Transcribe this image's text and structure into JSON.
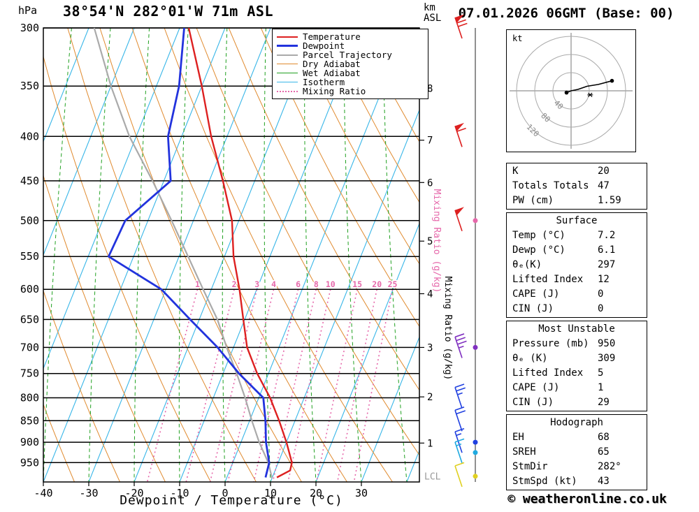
{
  "header": {
    "pressure_unit": "hPa",
    "station_title": "38°54'N 282°01'W 71m ASL",
    "altitude_unit_top": "km",
    "altitude_unit_bottom": "ASL",
    "date_title": "07.01.2026 06GMT (Base: 00)"
  },
  "legend": {
    "items": [
      {
        "label": "Temperature",
        "color": "#dd2020",
        "style": "solid",
        "weight": 2
      },
      {
        "label": "Dewpoint",
        "color": "#2233dd",
        "style": "solid",
        "weight": 3
      },
      {
        "label": "Parcel Trajectory",
        "color": "#aaaaaa",
        "style": "solid",
        "weight": 2
      },
      {
        "label": "Dry Adiabat",
        "color": "#e08a2e",
        "style": "solid",
        "weight": 1
      },
      {
        "label": "Wet Adiabat",
        "color": "#20a020",
        "style": "solid",
        "weight": 1
      },
      {
        "label": "Isotherm",
        "color": "#38b6e8",
        "style": "solid",
        "weight": 1
      },
      {
        "label": "Mixing Ratio",
        "color": "#e668aa",
        "style": "dotted",
        "weight": 2
      }
    ]
  },
  "chart_data": {
    "type": "skewt-log-p",
    "xlabel": "Dewpoint / Temperature (°C)",
    "pressure_ticks": [
      300,
      350,
      400,
      450,
      500,
      550,
      600,
      650,
      700,
      750,
      800,
      850,
      900,
      950
    ],
    "temp_ticks": [
      -40,
      -30,
      -20,
      -10,
      0,
      10,
      20,
      30
    ],
    "pressure_range": [
      300,
      1000
    ],
    "temp_axis_range": [
      -40,
      40
    ],
    "km_levels": [
      [
        8,
        352
      ],
      [
        7,
        404
      ],
      [
        6,
        452
      ],
      [
        5,
        528
      ],
      [
        4,
        607
      ],
      [
        3,
        700
      ],
      [
        2,
        798
      ],
      [
        1,
        902
      ]
    ],
    "lcl": {
      "label": "LCL",
      "pressure": 984
    },
    "mixing_ratio_values": [
      1,
      2,
      3,
      4,
      6,
      8,
      10,
      15,
      20,
      25
    ],
    "mixing_ratio_axis_label": "Mixing Ratio (g/kg)",
    "temperature_profile": [
      [
        988,
        11.0
      ],
      [
        970,
        13.3
      ],
      [
        950,
        13.0
      ],
      [
        900,
        10.0
      ],
      [
        850,
        6.5
      ],
      [
        800,
        2.5
      ],
      [
        750,
        -2.5
      ],
      [
        700,
        -7.0
      ],
      [
        650,
        -10.3
      ],
      [
        600,
        -13.8
      ],
      [
        550,
        -18.0
      ],
      [
        500,
        -21.5
      ],
      [
        450,
        -27.0
      ],
      [
        400,
        -33.5
      ],
      [
        350,
        -40.0
      ],
      [
        300,
        -48.0
      ]
    ],
    "dewpoint_profile": [
      [
        988,
        8.5
      ],
      [
        950,
        8.0
      ],
      [
        900,
        5.5
      ],
      [
        850,
        3.5
      ],
      [
        800,
        1.0
      ],
      [
        750,
        -6.5
      ],
      [
        700,
        -13.5
      ],
      [
        650,
        -22.0
      ],
      [
        600,
        -31.0
      ],
      [
        550,
        -45.5
      ],
      [
        500,
        -45.0
      ],
      [
        450,
        -38.5
      ],
      [
        400,
        -43.0
      ],
      [
        350,
        -45.0
      ],
      [
        300,
        -49.0
      ]
    ],
    "parcel_profile": [
      [
        990,
        10.0
      ],
      [
        950,
        7.8
      ],
      [
        900,
        4.0
      ],
      [
        850,
        0.5
      ],
      [
        800,
        -3.0
      ],
      [
        750,
        -7.0
      ],
      [
        700,
        -11.5
      ],
      [
        650,
        -16.0
      ],
      [
        600,
        -21.8
      ],
      [
        550,
        -28.0
      ],
      [
        500,
        -34.8
      ],
      [
        450,
        -42.5
      ],
      [
        400,
        -51.5
      ],
      [
        350,
        -60.0
      ],
      [
        300,
        -68.8
      ]
    ],
    "wind_barbs": [
      {
        "pressure": 300,
        "speed_kt": 70,
        "color": "#dd2020"
      },
      {
        "pressure": 400,
        "speed_kt": 60,
        "color": "#dd2020"
      },
      {
        "pressure": 500,
        "speed_kt": 50,
        "color": "#dd2020"
      },
      {
        "pressure": 700,
        "speed_kt": 35,
        "color": "#8030c0"
      },
      {
        "pressure": 800,
        "speed_kt": 25,
        "color": "#2040e0"
      },
      {
        "pressure": 850,
        "speed_kt": 20,
        "color": "#2040e0"
      },
      {
        "pressure": 900,
        "speed_kt": 15,
        "color": "#2040e0"
      },
      {
        "pressure": 925,
        "speed_kt": 15,
        "color": "#20aae0"
      },
      {
        "pressure": 985,
        "speed_kt": 10,
        "color": "#e0d020"
      }
    ],
    "level_dots": [
      {
        "pressure": 500,
        "color": "#e668aa"
      },
      {
        "pressure": 700,
        "color": "#8030c0"
      },
      {
        "pressure": 900,
        "color": "#2040e0"
      },
      {
        "pressure": 925,
        "color": "#20aae0"
      },
      {
        "pressure": 985,
        "color": "#e0d020"
      }
    ],
    "colors": {
      "temperature": "#dd2020",
      "dewpoint": "#2233dd",
      "parcel": "#aaaaaa",
      "dry_adiabat": "#e08a2e",
      "wet_adiabat": "#20a020",
      "isotherm": "#38b6e8",
      "mixing_ratio": "#e668aa"
    }
  },
  "hodograph": {
    "unit_label": "kt",
    "rings_kt": [
      40,
      80,
      120
    ],
    "trace_kt": [
      [
        -10,
        -4
      ],
      [
        0,
        0
      ],
      [
        15,
        3
      ],
      [
        35,
        10
      ],
      [
        60,
        14
      ],
      [
        90,
        22
      ]
    ],
    "dot_points_kt": [
      [
        -10,
        -4
      ],
      [
        90,
        22
      ]
    ],
    "storm_motion_kt": [
      42,
      -9
    ]
  },
  "tables": {
    "indices": {
      "rows": [
        [
          "K",
          "20"
        ],
        [
          "Totals Totals",
          "47"
        ],
        [
          "PW (cm)",
          "1.59"
        ]
      ]
    },
    "surface": {
      "header": "Surface",
      "rows": [
        [
          "Temp (°C)",
          "7.2"
        ],
        [
          "Dewp (°C)",
          "6.1"
        ],
        [
          "θₑ(K)",
          "297"
        ],
        [
          "Lifted Index",
          "12"
        ],
        [
          "CAPE (J)",
          "0"
        ],
        [
          "CIN (J)",
          "0"
        ]
      ]
    },
    "most_unstable": {
      "header": "Most Unstable",
      "rows": [
        [
          "Pressure (mb)",
          "950"
        ],
        [
          "θₑ (K)",
          "309"
        ],
        [
          "Lifted Index",
          "5"
        ],
        [
          "CAPE (J)",
          "1"
        ],
        [
          "CIN (J)",
          "29"
        ]
      ]
    },
    "hodograph_table": {
      "header": "Hodograph",
      "rows": [
        [
          "EH",
          "68"
        ],
        [
          "SREH",
          "65"
        ],
        [
          "StmDir",
          "282°"
        ],
        [
          "StmSpd (kt)",
          "43"
        ]
      ]
    }
  },
  "footer": {
    "copyright": "© weatheronline.co.uk"
  }
}
